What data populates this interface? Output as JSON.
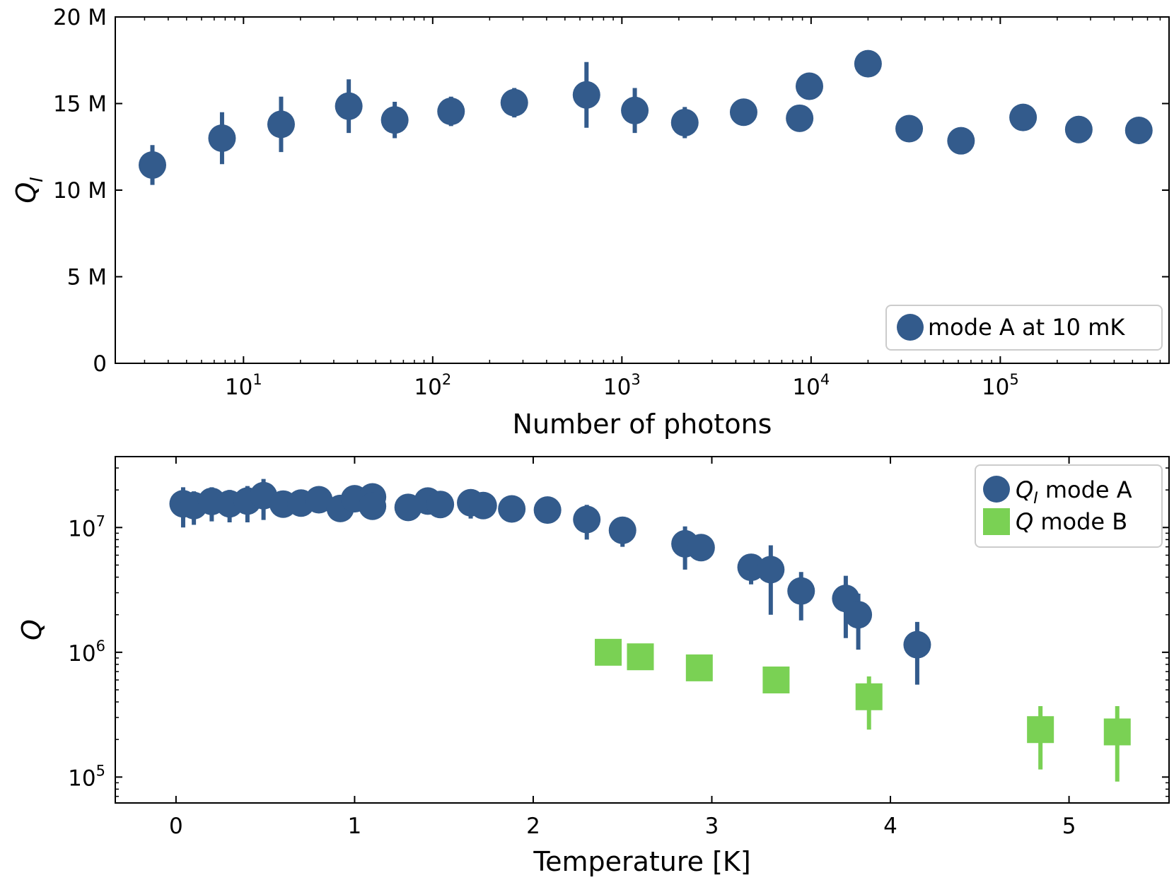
{
  "chart_data": [
    {
      "type": "scatter",
      "xscale": "log",
      "xlim": [
        2.1,
        780000
      ],
      "ylim": [
        0,
        20000000
      ],
      "xlabel": "Number of photons",
      "ylabel": "Q",
      "ylabel_sub": "I",
      "yticks": [
        {
          "value": 0,
          "label": "0"
        },
        {
          "value": 5000000,
          "label": "5 M"
        },
        {
          "value": 10000000,
          "label": "10 M"
        },
        {
          "value": 15000000,
          "label": "15 M"
        },
        {
          "value": 20000000,
          "label": "20 M"
        }
      ],
      "xticks": [
        {
          "exp": 1,
          "value": 10
        },
        {
          "exp": 2,
          "value": 100
        },
        {
          "exp": 3,
          "value": 1000
        },
        {
          "exp": 4,
          "value": 10000
        },
        {
          "exp": 5,
          "value": 100000
        }
      ],
      "legend": {
        "location": "lower right",
        "entries": [
          "mode A at 10 mK"
        ]
      },
      "grid": false,
      "series": [
        {
          "name": "mode A at 10 mK",
          "marker": "circle",
          "color": "#335b8c",
          "points": [
            {
              "x": 3.3,
              "y": 11450000,
              "ylo": 10300000,
              "yhi": 12600000
            },
            {
              "x": 7.7,
              "y": 13000000,
              "ylo": 11500000,
              "yhi": 14500000
            },
            {
              "x": 15.8,
              "y": 13800000,
              "ylo": 12200000,
              "yhi": 15400000
            },
            {
              "x": 36,
              "y": 14850000,
              "ylo": 13300000,
              "yhi": 16400000
            },
            {
              "x": 63,
              "y": 14050000,
              "ylo": 13000000,
              "yhi": 15100000
            },
            {
              "x": 125,
              "y": 14550000,
              "ylo": 13700000,
              "yhi": 15400000
            },
            {
              "x": 270,
              "y": 15050000,
              "ylo": 14200000,
              "yhi": 15900000
            },
            {
              "x": 650,
              "y": 15500000,
              "ylo": 13600000,
              "yhi": 17400000
            },
            {
              "x": 1170,
              "y": 14600000,
              "ylo": 13300000,
              "yhi": 15900000
            },
            {
              "x": 2150,
              "y": 13900000,
              "ylo": 13000000,
              "yhi": 14800000
            },
            {
              "x": 4400,
              "y": 14500000,
              "ylo": 14200000,
              "yhi": 14800000
            },
            {
              "x": 8700,
              "y": 14150000,
              "ylo": 13900000,
              "yhi": 14400000
            },
            {
              "x": 9800,
              "y": 16000000,
              "ylo": 15700000,
              "yhi": 16300000
            },
            {
              "x": 20000,
              "y": 17300000,
              "ylo": 16700000,
              "yhi": 17900000
            },
            {
              "x": 33000,
              "y": 13550000,
              "ylo": 13300000,
              "yhi": 13800000
            },
            {
              "x": 62000,
              "y": 12850000,
              "ylo": 12600000,
              "yhi": 13100000
            },
            {
              "x": 132000,
              "y": 14200000,
              "ylo": 13950000,
              "yhi": 14450000
            },
            {
              "x": 260000,
              "y": 13500000,
              "ylo": 13250000,
              "yhi": 13750000
            },
            {
              "x": 540000,
              "y": 13450000,
              "ylo": 13200000,
              "yhi": 13700000
            }
          ]
        }
      ]
    },
    {
      "type": "scatter",
      "yscale": "log",
      "xlim": [
        -0.34,
        5.56
      ],
      "ylim": [
        62000,
        37000000
      ],
      "xlabel": "Temperature [K]",
      "ylabel": "Q",
      "xticks": [
        {
          "value": 0,
          "label": "0"
        },
        {
          "value": 1,
          "label": "1"
        },
        {
          "value": 2,
          "label": "2"
        },
        {
          "value": 3,
          "label": "3"
        },
        {
          "value": 4,
          "label": "4"
        },
        {
          "value": 5,
          "label": "5"
        }
      ],
      "yticks": [
        {
          "exp": 5,
          "value": 100000
        },
        {
          "exp": 6,
          "value": 1000000
        },
        {
          "exp": 7,
          "value": 10000000
        }
      ],
      "legend": {
        "location": "upper right",
        "entries": [
          "Q_I mode A",
          "Q mode B"
        ]
      },
      "legend_text": {
        "a_prefix": "Q",
        "a_sub": "I",
        "a_suffix": " mode A",
        "b_prefix": "Q",
        "b_suffix": " mode B"
      },
      "grid": false,
      "series": [
        {
          "name": "Q_I mode A",
          "marker": "circle",
          "color": "#335b8c",
          "points": [
            {
              "x": 0.04,
              "y": 15500000,
              "ylo": 10000000,
              "yhi": 21000000
            },
            {
              "x": 0.1,
              "y": 15000000,
              "ylo": 10500000,
              "yhi": 19500000
            },
            {
              "x": 0.2,
              "y": 16200000,
              "ylo": 11200000,
              "yhi": 21000000
            },
            {
              "x": 0.3,
              "y": 15500000,
              "ylo": 11000000,
              "yhi": 20000000
            },
            {
              "x": 0.4,
              "y": 16300000,
              "ylo": 11000000,
              "yhi": 21500000
            },
            {
              "x": 0.49,
              "y": 18000000,
              "ylo": 11500000,
              "yhi": 24500000
            },
            {
              "x": 0.6,
              "y": 15400000,
              "ylo": 13000000,
              "yhi": 17800000
            },
            {
              "x": 0.7,
              "y": 15700000,
              "ylo": 13500000,
              "yhi": 17900000
            },
            {
              "x": 0.8,
              "y": 16700000,
              "ylo": 13500000,
              "yhi": 19900000
            },
            {
              "x": 0.92,
              "y": 14200000,
              "ylo": 12800000,
              "yhi": 15600000
            },
            {
              "x": 1.0,
              "y": 17000000,
              "ylo": 14500000,
              "yhi": 19500000
            },
            {
              "x": 1.1,
              "y": 17600000,
              "ylo": 15500000,
              "yhi": 19700000
            },
            {
              "x": 1.1,
              "y": 14800000,
              "ylo": 13800000,
              "yhi": 15800000
            },
            {
              "x": 1.3,
              "y": 14500000,
              "ylo": 13500000,
              "yhi": 15500000
            },
            {
              "x": 1.41,
              "y": 16300000,
              "ylo": 12800000,
              "yhi": 19800000
            },
            {
              "x": 1.48,
              "y": 15300000,
              "ylo": 14300000,
              "yhi": 16300000
            },
            {
              "x": 1.65,
              "y": 15800000,
              "ylo": 11800000,
              "yhi": 19800000
            },
            {
              "x": 1.72,
              "y": 15000000,
              "ylo": 12000000,
              "yhi": 18000000
            },
            {
              "x": 1.88,
              "y": 14100000,
              "ylo": 13100000,
              "yhi": 15100000
            },
            {
              "x": 2.08,
              "y": 13800000,
              "ylo": 13000000,
              "yhi": 14600000
            },
            {
              "x": 2.3,
              "y": 11600000,
              "ylo": 8000000,
              "yhi": 15200000
            },
            {
              "x": 2.5,
              "y": 9500000,
              "ylo": 7000000,
              "yhi": 12000000
            },
            {
              "x": 2.85,
              "y": 7400000,
              "ylo": 4600000,
              "yhi": 10200000
            },
            {
              "x": 2.94,
              "y": 6900000,
              "ylo": 6300000,
              "yhi": 7500000
            },
            {
              "x": 3.22,
              "y": 4800000,
              "ylo": 3500000,
              "yhi": 6100000
            },
            {
              "x": 3.33,
              "y": 4600000,
              "ylo": 2000000,
              "yhi": 7200000
            },
            {
              "x": 3.5,
              "y": 3100000,
              "ylo": 1800000,
              "yhi": 4400000
            },
            {
              "x": 3.75,
              "y": 2700000,
              "ylo": 1300000,
              "yhi": 4100000
            },
            {
              "x": 3.82,
              "y": 2000000,
              "ylo": 1050000,
              "yhi": 2950000
            },
            {
              "x": 4.15,
              "y": 1150000,
              "ylo": 550000,
              "yhi": 1750000
            }
          ]
        },
        {
          "name": "Q mode B",
          "marker": "square",
          "color": "#7ad154",
          "points": [
            {
              "x": 2.42,
              "y": 1000000,
              "ylo": 950000,
              "yhi": 1050000
            },
            {
              "x": 2.6,
              "y": 920000,
              "ylo": 880000,
              "yhi": 960000
            },
            {
              "x": 2.93,
              "y": 750000,
              "ylo": 720000,
              "yhi": 780000
            },
            {
              "x": 3.36,
              "y": 600000,
              "ylo": 575000,
              "yhi": 625000
            },
            {
              "x": 3.88,
              "y": 440000,
              "ylo": 240000,
              "yhi": 640000
            },
            {
              "x": 4.84,
              "y": 240000,
              "ylo": 115000,
              "yhi": 370000
            },
            {
              "x": 5.27,
              "y": 230000,
              "ylo": 92000,
              "yhi": 370000
            }
          ]
        }
      ]
    }
  ]
}
